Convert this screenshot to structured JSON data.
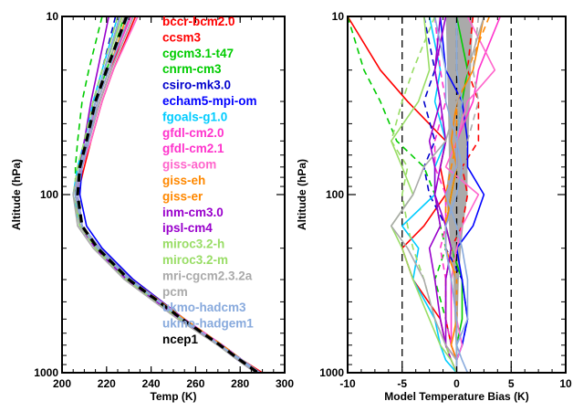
{
  "chart_data": [
    {
      "type": "line",
      "panel": "left",
      "xlabel": "Temp (K)",
      "ylabel": "Altitude (hPa)",
      "xlim": [
        200,
        300
      ],
      "ylim": [
        1000,
        10
      ],
      "yscale": "log",
      "xticks": [
        "200",
        "220",
        "240",
        "260",
        "280",
        "300"
      ],
      "yticks": [
        "10",
        "100",
        "1000"
      ],
      "legend_placement": "upper-right",
      "pressure_levels": [
        10,
        20,
        30,
        50,
        70,
        100,
        150,
        200,
        300,
        500,
        700,
        850,
        1000
      ],
      "series": [
        {
          "name": "bccr-bcm2.0",
          "color": "#ff0000",
          "dash": "solid",
          "values": [
            230,
            222,
            217,
            212,
            209,
            206,
            209,
            216,
            230,
            254,
            272,
            281,
            290
          ]
        },
        {
          "name": "ccsm3",
          "color": "#ff0000",
          "dash": "solid",
          "values": [
            233,
            223,
            218,
            213,
            210,
            207,
            209,
            217,
            232,
            255,
            272,
            281,
            289
          ]
        },
        {
          "name": "cgcm3.1-t47",
          "color": "#00cc00",
          "dash": "dashed",
          "values": [
            218,
            212,
            209,
            207,
            206,
            206,
            209,
            216,
            230,
            254,
            271,
            280,
            288
          ]
        },
        {
          "name": "cnrm-cm3",
          "color": "#00cc00",
          "dash": "solid",
          "values": [
            228,
            220,
            215,
            211,
            208,
            206,
            208,
            216,
            230,
            253,
            271,
            280,
            288
          ]
        },
        {
          "name": "csiro-mk3.0",
          "color": "#0000cc",
          "dash": "dashed",
          "values": [
            224,
            218,
            214,
            210,
            208,
            207,
            209,
            217,
            231,
            254,
            272,
            281,
            289
          ]
        },
        {
          "name": "echam5-mpi-om",
          "color": "#0000ff",
          "dash": "solid",
          "values": [
            226,
            219,
            215,
            211,
            209,
            208,
            211,
            218,
            232,
            255,
            272,
            281,
            289
          ]
        },
        {
          "name": "fgoals-g1.0",
          "color": "#00ccff",
          "dash": "solid",
          "values": [
            225,
            218,
            214,
            210,
            207,
            205,
            208,
            215,
            229,
            253,
            270,
            279,
            287
          ]
        },
        {
          "name": "gfdl-cm2.0",
          "color": "#ff33cc",
          "dash": "dashed",
          "values": [
            227,
            219,
            215,
            211,
            208,
            206,
            209,
            216,
            230,
            254,
            271,
            280,
            288
          ]
        },
        {
          "name": "gfdl-cm2.1",
          "color": "#ff33cc",
          "dash": "solid",
          "values": [
            231,
            221,
            216,
            211,
            208,
            206,
            209,
            216,
            231,
            254,
            271,
            281,
            289
          ]
        },
        {
          "name": "giss-aom",
          "color": "#ff66cc",
          "dash": "solid",
          "values": [
            234,
            223,
            218,
            213,
            209,
            206,
            209,
            216,
            231,
            255,
            272,
            281,
            289
          ]
        },
        {
          "name": "giss-eh",
          "color": "#ff8800",
          "dash": "solid",
          "values": [
            229,
            221,
            216,
            212,
            209,
            207,
            209,
            217,
            231,
            254,
            271,
            280,
            288
          ]
        },
        {
          "name": "giss-er",
          "color": "#ff8800",
          "dash": "dashed",
          "values": [
            230,
            221,
            216,
            212,
            209,
            207,
            209,
            217,
            231,
            255,
            272,
            281,
            289
          ]
        },
        {
          "name": "inm-cm3.0",
          "color": "#9900cc",
          "dash": "solid",
          "values": [
            232,
            222,
            217,
            212,
            209,
            207,
            209,
            216,
            230,
            254,
            271,
            280,
            288
          ]
        },
        {
          "name": "ipsl-cm4",
          "color": "#9900cc",
          "dash": "solid",
          "values": [
            221,
            216,
            213,
            210,
            208,
            206,
            208,
            215,
            229,
            253,
            270,
            279,
            287
          ]
        },
        {
          "name": "miroc3.2-h",
          "color": "#99dd66",
          "dash": "solid",
          "values": [
            227,
            219,
            215,
            211,
            208,
            206,
            208,
            216,
            230,
            254,
            271,
            280,
            288
          ]
        },
        {
          "name": "miroc3.2-m",
          "color": "#99dd66",
          "dash": "dashed",
          "values": [
            225,
            218,
            214,
            210,
            207,
            205,
            208,
            215,
            229,
            253,
            270,
            279,
            287
          ]
        },
        {
          "name": "mri-cgcm2.3.2a",
          "color": "#aaaaaa",
          "dash": "dashed",
          "values": [
            228,
            220,
            215,
            211,
            208,
            206,
            208,
            216,
            230,
            254,
            271,
            280,
            288
          ]
        },
        {
          "name": "pcm",
          "color": "#aaaaaa",
          "dash": "solid",
          "values": [
            232,
            222,
            217,
            212,
            208,
            205,
            207,
            214,
            228,
            252,
            270,
            279,
            287
          ]
        },
        {
          "name": "ukmo-hadcm3",
          "color": "#88aadd",
          "dash": "solid",
          "values": [
            230,
            221,
            216,
            212,
            209,
            207,
            209,
            217,
            231,
            254,
            271,
            281,
            289
          ]
        },
        {
          "name": "ukmo-hadgem1",
          "color": "#88aadd",
          "dash": "solid",
          "values": [
            226,
            219,
            215,
            211,
            208,
            206,
            209,
            216,
            230,
            254,
            271,
            280,
            288
          ]
        },
        {
          "name": "ncep1",
          "color": "#000000",
          "dash": "dashed-thick",
          "values": [
            229,
            220,
            215,
            211,
            208,
            207,
            209,
            216,
            230,
            254,
            271,
            280,
            288
          ]
        }
      ]
    },
    {
      "type": "line",
      "panel": "right",
      "xlabel": "Model Temperature Bias (K)",
      "ylabel": "Altitude (hPa)",
      "xlim": [
        -10,
        10
      ],
      "ylim": [
        1000,
        10
      ],
      "yscale": "log",
      "xticks": [
        "-10",
        "-5",
        "0",
        "5",
        "10"
      ],
      "yticks": [
        "10",
        "100",
        "1000"
      ],
      "reference_lines_x": [
        -5,
        0,
        5
      ],
      "spread_band": {
        "color": "#aaaaaa",
        "pressure": [
          10,
          30,
          70,
          100,
          150,
          200,
          300,
          500,
          700
        ],
        "min": [
          -1.0,
          -0.8,
          -0.7,
          -1.0,
          -0.7,
          -0.6,
          -0.3,
          -0.2,
          -0.1
        ],
        "max": [
          1.5,
          1.2,
          1.0,
          1.0,
          0.6,
          0.4,
          0.2,
          0.1,
          0.0
        ]
      },
      "pressure_levels": [
        10,
        20,
        30,
        50,
        70,
        100,
        150,
        200,
        300,
        500,
        700,
        850,
        1000
      ],
      "series": [
        {
          "name": "bccr-bcm2.0",
          "color": "#ff0000",
          "dash": "solid",
          "values": [
            -10,
            -7,
            -4.5,
            -1,
            -1.5,
            -1,
            -3,
            -5,
            -4,
            -1.5,
            -1,
            -0.5,
            0
          ]
        },
        {
          "name": "ccsm3",
          "color": "#ff0000",
          "dash": "dashed",
          "values": [
            1.5,
            1,
            2,
            2,
            0.5,
            1,
            0.5,
            -0.5,
            -1,
            -1,
            -0.5,
            0,
            0
          ]
        },
        {
          "name": "cgcm3.1-t47",
          "color": "#00cc00",
          "dash": "dashed",
          "values": [
            -10,
            -8.5,
            -7,
            -5.5,
            -3,
            -2,
            -1.5,
            -1,
            -2,
            -1,
            -0.5,
            0,
            0
          ]
        },
        {
          "name": "cnrm-cm3",
          "color": "#00cc00",
          "dash": "solid",
          "values": [
            0,
            1,
            0.5,
            0,
            0,
            -0.5,
            -1,
            -0.5,
            0.5,
            0.5,
            0,
            0,
            0
          ]
        },
        {
          "name": "csiro-mk3.0",
          "color": "#0000cc",
          "dash": "dashed",
          "values": [
            -3,
            -2,
            -3,
            -2,
            -3,
            -2.5,
            -1,
            -1,
            0.5,
            1,
            0.5,
            0,
            0
          ]
        },
        {
          "name": "echam5-mpi-om",
          "color": "#0000ff",
          "dash": "solid",
          "values": [
            -1.5,
            -1,
            0.5,
            1,
            1,
            2.5,
            1.5,
            0,
            0.5,
            1,
            0.5,
            0,
            0
          ]
        },
        {
          "name": "fgoals-g1.0",
          "color": "#00ccff",
          "dash": "solid",
          "values": [
            -2.5,
            -1.5,
            -2,
            -1,
            -2,
            -2,
            -5,
            -3.5,
            -4,
            -2,
            -1.5,
            -1,
            0
          ]
        },
        {
          "name": "gfdl-cm2.0",
          "color": "#ff33cc",
          "dash": "dashed",
          "values": [
            -2,
            -1.5,
            -1,
            -2,
            -2,
            -1,
            -1,
            -1.5,
            -1,
            -1,
            -0.5,
            0,
            0
          ]
        },
        {
          "name": "gfdl-cm2.1",
          "color": "#ff33cc",
          "dash": "solid",
          "values": [
            4,
            2,
            1.5,
            0,
            0,
            -1,
            -1,
            -1,
            -0.5,
            -0.5,
            -0.5,
            0,
            0
          ]
        },
        {
          "name": "giss-aom",
          "color": "#ff66cc",
          "dash": "solid",
          "values": [
            1,
            3.5,
            1,
            0,
            -1,
            2,
            0.5,
            0,
            -0.5,
            0,
            0.5,
            0,
            0
          ]
        },
        {
          "name": "giss-eh",
          "color": "#ff8800",
          "dash": "solid",
          "values": [
            2.5,
            1.5,
            0,
            -0.5,
            0,
            -0.5,
            -1,
            -1,
            0,
            0,
            -0.5,
            0,
            0
          ]
        },
        {
          "name": "giss-er",
          "color": "#ff8800",
          "dash": "dashed",
          "values": [
            3,
            1,
            0,
            0,
            -0.5,
            -1,
            -1,
            -0.5,
            0,
            0,
            0,
            0,
            0
          ]
        },
        {
          "name": "inm-cm3.0",
          "color": "#9900cc",
          "dash": "solid",
          "values": [
            -1,
            -2,
            -1.5,
            -2.5,
            -2,
            -2,
            -1,
            -0.5,
            -1,
            -1,
            -1,
            0,
            0
          ]
        },
        {
          "name": "ipsl-cm4",
          "color": "#9900cc",
          "dash": "solid",
          "values": [
            -1.5,
            -2,
            -1.5,
            -1,
            -1.5,
            -2,
            -1.5,
            -2.5,
            -2,
            -1.5,
            -1,
            -0.5,
            0
          ]
        },
        {
          "name": "miroc3.2-h",
          "color": "#99dd66",
          "dash": "solid",
          "values": [
            -3,
            -2.5,
            -3.5,
            -6,
            -5,
            -4,
            -6,
            -5,
            -4,
            -2.5,
            -1.5,
            -0.5,
            0
          ]
        },
        {
          "name": "miroc3.2-m",
          "color": "#99dd66",
          "dash": "dashed",
          "values": [
            -2,
            -4,
            -5,
            -6,
            -4.5,
            -5,
            -4.5,
            -4,
            -3,
            -2,
            -1,
            -0.5,
            0
          ]
        },
        {
          "name": "mri-cgcm2.3.2a",
          "color": "#aaaaaa",
          "dash": "dashed",
          "values": [
            2,
            1.5,
            2,
            1,
            0.5,
            0,
            0.5,
            -0.5,
            0,
            0,
            0,
            0,
            0
          ]
        },
        {
          "name": "pcm",
          "color": "#aaaaaa",
          "dash": "solid",
          "values": [
            2.5,
            1,
            0,
            -1,
            -3,
            -4,
            -6,
            -4.5,
            -3,
            -2,
            -1,
            0,
            0
          ]
        },
        {
          "name": "ukmo-hadcm3",
          "color": "#88aadd",
          "dash": "solid",
          "values": [
            0,
            0,
            0.5,
            0,
            0.5,
            0,
            -1,
            -1,
            -0.5,
            0,
            0,
            0.5,
            1
          ]
        },
        {
          "name": "ukmo-hadgem1",
          "color": "#88aadd",
          "dash": "solid",
          "values": [
            -2,
            -1,
            -1,
            0,
            0,
            -1,
            0,
            0.5,
            1,
            1,
            0,
            0,
            0
          ]
        }
      ]
    }
  ]
}
